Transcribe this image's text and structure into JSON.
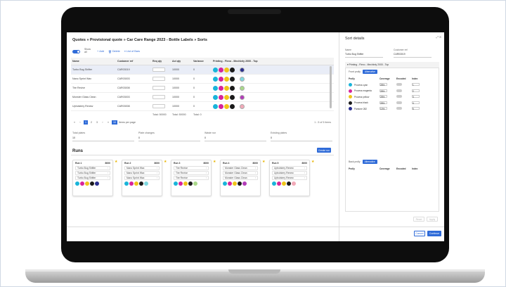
{
  "breadcrumb": "Quotes » Provisional quote » Car Care Range 2023 - Bottle Labels » Sorts",
  "toolbar": {
    "toggle_label": "Show all",
    "add": "Add",
    "delete": "Delete",
    "list": "List of Bars"
  },
  "columns": [
    "Name",
    "Customer ref",
    "Req qty",
    "Act qty",
    "Variance",
    "Printing - Flexo - Mechbrly 2000 - Top"
  ],
  "rows": [
    {
      "name": "Turbo Bug Shifter",
      "ref": "CAR03019",
      "act": "10000",
      "variance": "0",
      "dots": [
        "#19b4d9",
        "#d6259b",
        "#f0c419",
        "#1a1a1a",
        "#2a2f8f"
      ]
    },
    {
      "name": "Nano Sprint Wax",
      "ref": "CAR03003",
      "act": "10000",
      "variance": "0",
      "dots": [
        "#19b4d9",
        "#d6259b",
        "#f0c419",
        "#1a1a1a",
        "#7fd8df"
      ]
    },
    {
      "name": "Tire Revive",
      "ref": "CAR03008",
      "act": "10000",
      "variance": "0",
      "dots": [
        "#19b4d9",
        "#d6259b",
        "#f0c419",
        "#1a1a1a",
        "#a9d88a"
      ]
    },
    {
      "name": "Monster Glass Clean",
      "ref": "CAR03003",
      "act": "10000",
      "variance": "0",
      "dots": [
        "#19b4d9",
        "#d6259b",
        "#f0c419",
        "#1a1a1a",
        "#b23cb8"
      ]
    },
    {
      "name": "Upholstery Renew",
      "ref": "CAR03008",
      "act": "10000",
      "variance": "0",
      "dots": [
        "#19b4d9",
        "#d6259b",
        "#f0c419",
        "#1a1a1a",
        "#f2a9b8"
      ]
    }
  ],
  "totals": {
    "req": "Total: 50000",
    "act": "Total: 50000",
    "variance": "Total: 0"
  },
  "pager": {
    "p1": "1",
    "p2": "2",
    "p3": "3",
    "size": "10",
    "per_page": "Items per page",
    "count": "1 - 5 of 5 items"
  },
  "stats": [
    {
      "label": "Total plates",
      "value": "10"
    },
    {
      "label": "Plate changes",
      "value": "0"
    },
    {
      "label": "Waste run",
      "value": "0"
    },
    {
      "label": "Existing plates",
      "value": "0"
    }
  ],
  "runs_title": "Runs",
  "create_run": "Create run",
  "cards": [
    {
      "head": "Run 1",
      "qty": "8000",
      "items": [
        "Turbo Bug Shifter",
        "Turbo Bug Shifter",
        "Turbo Bug Shifter"
      ],
      "dots": [
        "#19b4d9",
        "#d6259b",
        "#f0c419",
        "#1a1a1a",
        "#2a2f8f"
      ]
    },
    {
      "head": "Run 2",
      "qty": "8000",
      "items": [
        "Nano Sprint Wax",
        "Nano Sprint Wax",
        "Nano Sprint Wax"
      ],
      "dots": [
        "#19b4d9",
        "#d6259b",
        "#f0c419",
        "#1a1a1a",
        "#7fd8df"
      ]
    },
    {
      "head": "Run 3",
      "qty": "8000",
      "items": [
        "Tire Revive",
        "Tire Revive",
        "Tire Revive"
      ],
      "dots": [
        "#19b4d9",
        "#d6259b",
        "#f0c419",
        "#1a1a1a",
        "#a9d88a"
      ]
    },
    {
      "head": "Run 4",
      "qty": "8000",
      "items": [
        "Monster Glass Clean",
        "Monster Glass Clean",
        "Monster Glass Clean"
      ],
      "dots": [
        "#19b4d9",
        "#d6259b",
        "#f0c419",
        "#1a1a1a",
        "#b23cb8"
      ]
    },
    {
      "head": "Run 5",
      "qty": "8000",
      "items": [
        "Upholstery Renew",
        "Upholstery Renew",
        "Upholstery Renew"
      ],
      "dots": [
        "#19b4d9",
        "#d6259b",
        "#f0c419",
        "#1a1a1a",
        "#f2a9b8"
      ]
    }
  ],
  "panel": {
    "title": "Sort details",
    "name_label": "Name",
    "name_value": "Turbo Bug Shifter",
    "ref_label": "Customer ref",
    "ref_value": "CAR03019",
    "accordion": "Printing - Flexo - Mechbrly 2000 - Top",
    "front": "Front prolly",
    "front_chip": "Alternative",
    "back": "Back prolly",
    "back_chip": "Alternative",
    "cols": [
      "Prolly",
      "Coverage",
      "Encoded",
      "Index"
    ],
    "inks": [
      {
        "name": "Process cyan",
        "color": "#19b4d9",
        "cov": "28%",
        "idx": "1"
      },
      {
        "name": "Process magenta",
        "color": "#d6259b",
        "cov": "28%",
        "idx": "2"
      },
      {
        "name": "Process yellow",
        "color": "#f0c419",
        "cov": "28%",
        "idx": "3"
      },
      {
        "name": "Process black",
        "color": "#1a1a1a",
        "cov": "28%",
        "idx": "4"
      },
      {
        "name": "Pantone 282",
        "color": "#2a2f8f",
        "cov": "10%",
        "idx": "5"
      }
    ],
    "reset": "Reset",
    "apply": "Apply"
  },
  "footer": {
    "cancel": "Cancel",
    "continue": "Continue"
  }
}
